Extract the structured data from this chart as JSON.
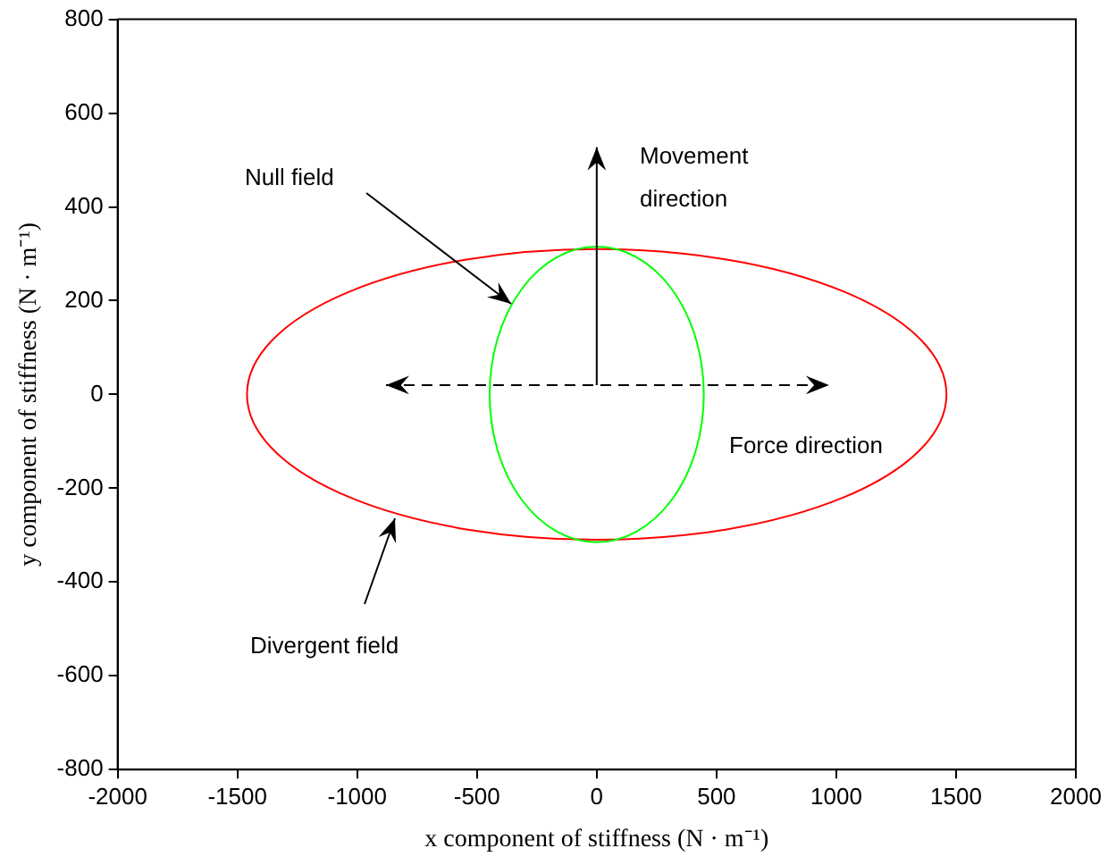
{
  "chart_data": {
    "type": "line",
    "xlabel": "x component of stiffness (N · m⁻¹)",
    "ylabel": "y component of stiffness (N · m⁻¹)",
    "xlim": [
      -2000,
      2000
    ],
    "ylim": [
      -800,
      800
    ],
    "xticks": [
      -2000,
      -1500,
      -1000,
      -500,
      0,
      500,
      1000,
      1500,
      2000
    ],
    "yticks": [
      -800,
      -600,
      -400,
      -200,
      0,
      200,
      400,
      600,
      800
    ],
    "grid": false,
    "legend": false,
    "annotations": [
      "Null field",
      "Movement direction",
      "Force direction",
      "Divergent field"
    ]
  }
}
